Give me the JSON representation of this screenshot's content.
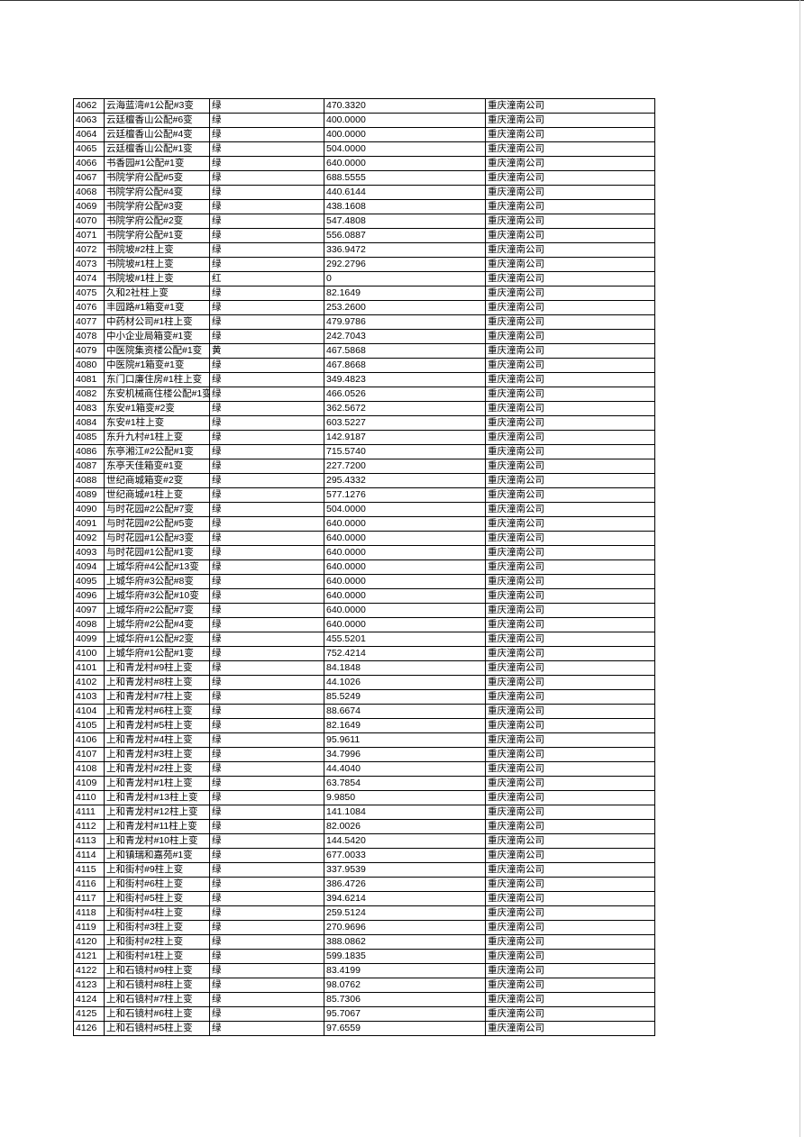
{
  "rows": [
    [
      "4062",
      "云海蓝湾#1公配#3变",
      "绿",
      "470.3320",
      "重庆潼南公司"
    ],
    [
      "4063",
      "云廷檀香山公配#6变",
      "绿",
      "400.0000",
      "重庆潼南公司"
    ],
    [
      "4064",
      "云廷檀香山公配#4变",
      "绿",
      "400.0000",
      "重庆潼南公司"
    ],
    [
      "4065",
      "云廷檀香山公配#1变",
      "绿",
      "504.0000",
      "重庆潼南公司"
    ],
    [
      "4066",
      "书香园#1公配#1变",
      "绿",
      "640.0000",
      "重庆潼南公司"
    ],
    [
      "4067",
      "书院学府公配#5变",
      "绿",
      "688.5555",
      "重庆潼南公司"
    ],
    [
      "4068",
      "书院学府公配#4变",
      "绿",
      "440.6144",
      "重庆潼南公司"
    ],
    [
      "4069",
      "书院学府公配#3变",
      "绿",
      "438.1608",
      "重庆潼南公司"
    ],
    [
      "4070",
      "书院学府公配#2变",
      "绿",
      "547.4808",
      "重庆潼南公司"
    ],
    [
      "4071",
      "书院学府公配#1变",
      "绿",
      "556.0887",
      "重庆潼南公司"
    ],
    [
      "4072",
      "书院坡#2柱上变",
      "绿",
      "336.9472",
      "重庆潼南公司"
    ],
    [
      "4073",
      "书院坡#1柱上变",
      "绿",
      "292.2796",
      "重庆潼南公司"
    ],
    [
      "4074",
      "书院坡#1柱上变",
      "红",
      "0",
      "重庆潼南公司"
    ],
    [
      "4075",
      "久和2社柱上变",
      "绿",
      "82.1649",
      "重庆潼南公司"
    ],
    [
      "4076",
      "丰园路#1箱变#1变",
      "绿",
      "253.2600",
      "重庆潼南公司"
    ],
    [
      "4077",
      "中药材公司#1柱上变",
      "绿",
      "479.9786",
      "重庆潼南公司"
    ],
    [
      "4078",
      "中小企业局箱变#1变",
      "绿",
      "242.7043",
      "重庆潼南公司"
    ],
    [
      "4079",
      "中医院集资楼公配#1变",
      "黄",
      "467.5868",
      "重庆潼南公司"
    ],
    [
      "4080",
      "中医院#1箱变#1变",
      "绿",
      "467.8668",
      "重庆潼南公司"
    ],
    [
      "4081",
      "东门口廉住房#1柱上变",
      "绿",
      "349.4823",
      "重庆潼南公司"
    ],
    [
      "4082",
      "东安机械商住楼公配#1变",
      "绿",
      "466.0526",
      "重庆潼南公司"
    ],
    [
      "4083",
      "东安#1箱变#2变",
      "绿",
      "362.5672",
      "重庆潼南公司"
    ],
    [
      "4084",
      "东安#1柱上变",
      "绿",
      "603.5227",
      "重庆潼南公司"
    ],
    [
      "4085",
      "东升九村#1柱上变",
      "绿",
      "142.9187",
      "重庆潼南公司"
    ],
    [
      "4086",
      "东亭湘江#2公配#1变",
      "绿",
      "715.5740",
      "重庆潼南公司"
    ],
    [
      "4087",
      "东亭天佳箱变#1变",
      "绿",
      "227.7200",
      "重庆潼南公司"
    ],
    [
      "4088",
      "世纪商城箱变#2变",
      "绿",
      "295.4332",
      "重庆潼南公司"
    ],
    [
      "4089",
      "世纪商城#1柱上变",
      "绿",
      "577.1276",
      "重庆潼南公司"
    ],
    [
      "4090",
      "与时花园#2公配#7变",
      "绿",
      "504.0000",
      "重庆潼南公司"
    ],
    [
      "4091",
      "与时花园#2公配#5变",
      "绿",
      "640.0000",
      "重庆潼南公司"
    ],
    [
      "4092",
      "与时花园#1公配#3变",
      "绿",
      "640.0000",
      "重庆潼南公司"
    ],
    [
      "4093",
      "与时花园#1公配#1变",
      "绿",
      "640.0000",
      "重庆潼南公司"
    ],
    [
      "4094",
      "上城华府#4公配#13变",
      "绿",
      "640.0000",
      "重庆潼南公司"
    ],
    [
      "4095",
      "上城华府#3公配#8变",
      "绿",
      "640.0000",
      "重庆潼南公司"
    ],
    [
      "4096",
      "上城华府#3公配#10变",
      "绿",
      "640.0000",
      "重庆潼南公司"
    ],
    [
      "4097",
      "上城华府#2公配#7变",
      "绿",
      "640.0000",
      "重庆潼南公司"
    ],
    [
      "4098",
      "上城华府#2公配#4变",
      "绿",
      "640.0000",
      "重庆潼南公司"
    ],
    [
      "4099",
      "上城华府#1公配#2变",
      "绿",
      "455.5201",
      "重庆潼南公司"
    ],
    [
      "4100",
      "上城华府#1公配#1变",
      "绿",
      "752.4214",
      "重庆潼南公司"
    ],
    [
      "4101",
      "上和青龙村#9柱上变",
      "绿",
      "84.1848",
      "重庆潼南公司"
    ],
    [
      "4102",
      "上和青龙村#8柱上变",
      "绿",
      "44.1026",
      "重庆潼南公司"
    ],
    [
      "4103",
      "上和青龙村#7柱上变",
      "绿",
      "85.5249",
      "重庆潼南公司"
    ],
    [
      "4104",
      "上和青龙村#6柱上变",
      "绿",
      "88.6674",
      "重庆潼南公司"
    ],
    [
      "4105",
      "上和青龙村#5柱上变",
      "绿",
      "82.1649",
      "重庆潼南公司"
    ],
    [
      "4106",
      "上和青龙村#4柱上变",
      "绿",
      "95.9611",
      "重庆潼南公司"
    ],
    [
      "4107",
      "上和青龙村#3柱上变",
      "绿",
      "34.7996",
      "重庆潼南公司"
    ],
    [
      "4108",
      "上和青龙村#2柱上变",
      "绿",
      "44.4040",
      "重庆潼南公司"
    ],
    [
      "4109",
      "上和青龙村#1柱上变",
      "绿",
      "63.7854",
      "重庆潼南公司"
    ],
    [
      "4110",
      "上和青龙村#13柱上变",
      "绿",
      "9.9850",
      "重庆潼南公司"
    ],
    [
      "4111",
      "上和青龙村#12柱上变",
      "绿",
      "141.1084",
      "重庆潼南公司"
    ],
    [
      "4112",
      "上和青龙村#11柱上变",
      "绿",
      "82.0026",
      "重庆潼南公司"
    ],
    [
      "4113",
      "上和青龙村#10柱上变",
      "绿",
      "144.5420",
      "重庆潼南公司"
    ],
    [
      "4114",
      "上和镇瑞和嘉苑#1变",
      "绿",
      "677.0033",
      "重庆潼南公司"
    ],
    [
      "4115",
      "上和街村#9柱上变",
      "绿",
      "337.9539",
      "重庆潼南公司"
    ],
    [
      "4116",
      "上和街村#6柱上变",
      "绿",
      "386.4726",
      "重庆潼南公司"
    ],
    [
      "4117",
      "上和街村#5柱上变",
      "绿",
      "394.6214",
      "重庆潼南公司"
    ],
    [
      "4118",
      "上和街村#4柱上变",
      "绿",
      "259.5124",
      "重庆潼南公司"
    ],
    [
      "4119",
      "上和街村#3柱上变",
      "绿",
      "270.9696",
      "重庆潼南公司"
    ],
    [
      "4120",
      "上和街村#2柱上变",
      "绿",
      "388.0862",
      "重庆潼南公司"
    ],
    [
      "4121",
      "上和街村#1柱上变",
      "绿",
      "599.1835",
      "重庆潼南公司"
    ],
    [
      "4122",
      "上和石镜村#9柱上变",
      "绿",
      "83.4199",
      "重庆潼南公司"
    ],
    [
      "4123",
      "上和石镜村#8柱上变",
      "绿",
      "98.0762",
      "重庆潼南公司"
    ],
    [
      "4124",
      "上和石镜村#7柱上变",
      "绿",
      "85.7306",
      "重庆潼南公司"
    ],
    [
      "4125",
      "上和石镜村#6柱上变",
      "绿",
      "95.7067",
      "重庆潼南公司"
    ],
    [
      "4126",
      "上和石镜村#5柱上变",
      "绿",
      "97.6559",
      "重庆潼南公司"
    ]
  ]
}
